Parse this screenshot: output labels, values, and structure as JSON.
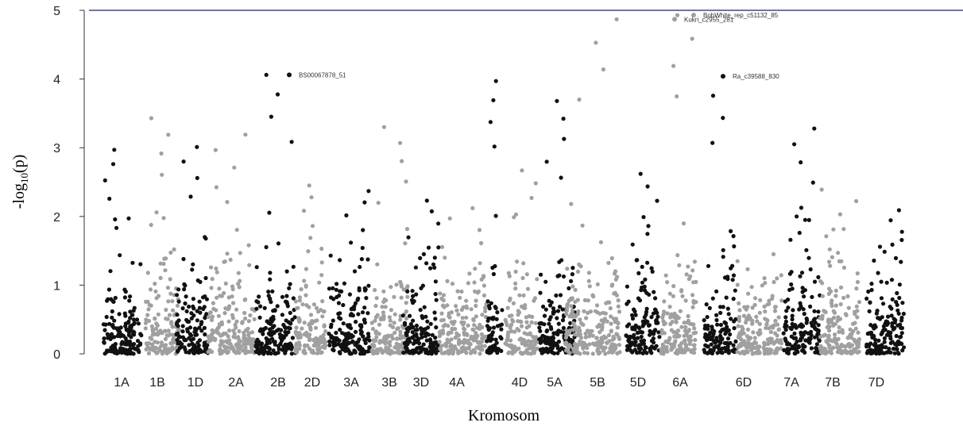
{
  "chart_data": {
    "type": "scatter",
    "title": "",
    "xlabel": "Kromosom",
    "ylabel_main": "-log",
    "ylabel_sub": "10",
    "ylabel_tail": "(p)",
    "ylim": [
      0,
      5
    ],
    "yticks": [
      "0",
      "1",
      "2",
      "3",
      "4",
      "5"
    ],
    "grid": false,
    "colors": {
      "dark": "#111111",
      "light": "#a0a0a0",
      "topline": "#3b4a8c"
    },
    "chromosomes": [
      {
        "label": "1A",
        "color": "dark",
        "max": 2.97
      },
      {
        "label": "1B",
        "color": "light",
        "max": 3.43
      },
      {
        "label": "1D",
        "color": "dark",
        "max": 3.01
      },
      {
        "label": "2A",
        "color": "light",
        "max": 3.19
      },
      {
        "label": "2B",
        "color": "dark",
        "max": 4.06
      },
      {
        "label": "2D",
        "color": "light",
        "max": 2.45
      },
      {
        "label": "3A",
        "color": "dark",
        "max": 2.37
      },
      {
        "label": "3B",
        "color": "light",
        "max": 3.3
      },
      {
        "label": "3D",
        "color": "dark",
        "max": 2.23
      },
      {
        "label": "4A",
        "color": "light",
        "max": 2.12
      },
      {
        "label": "",
        "color": "dark",
        "max": 3.97
      },
      {
        "label": "4D",
        "color": "light",
        "max": 2.67
      },
      {
        "label": "5A",
        "color": "dark",
        "max": 3.68
      },
      {
        "label": "5B",
        "color": "light",
        "max": 4.87
      },
      {
        "label": "5D",
        "color": "dark",
        "max": 2.62
      },
      {
        "label": "6A",
        "color": "light",
        "max": 4.93
      },
      {
        "label": "",
        "color": "dark",
        "max": 4.04
      },
      {
        "label": "6D",
        "color": "light",
        "max": 1.45
      },
      {
        "label": "7A",
        "color": "dark",
        "max": 3.28
      },
      {
        "label": "7B",
        "color": "light",
        "max": 2.39
      },
      {
        "label": "7D",
        "color": "dark",
        "max": 2.09
      }
    ],
    "annotations": [
      {
        "text": "BS00067878_51",
        "chromosome": "2B",
        "y": 4.06
      },
      {
        "text": "Kukri_c2955_281",
        "chromosome": "5B",
        "y": 4.87
      },
      {
        "text": "BobWhite_rep_c51132_85",
        "chromosome": "6A",
        "y": 4.93
      },
      {
        "text": "Ra_c39588_830",
        "chromosome": "6A-2",
        "y": 4.04
      }
    ]
  }
}
